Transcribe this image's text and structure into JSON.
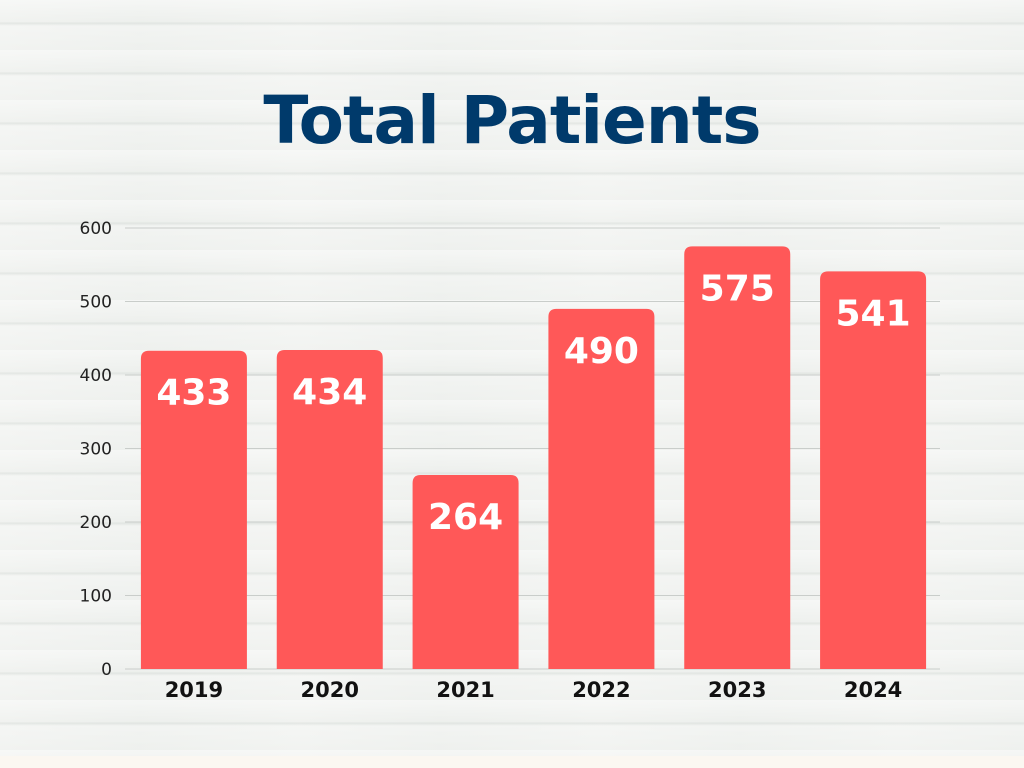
{
  "chart_data": {
    "type": "bar",
    "title": "Total Patients",
    "categories": [
      "2019",
      "2020",
      "2021",
      "2022",
      "2023",
      "2024"
    ],
    "values": [
      433,
      434,
      264,
      490,
      575,
      541
    ],
    "data_labels": [
      "433",
      "434",
      "264",
      "490",
      "575",
      "541"
    ],
    "xlabel": "",
    "ylabel": "",
    "ylim": [
      0,
      600
    ],
    "yticks": [
      "0",
      "100",
      "200",
      "300",
      "400",
      "500",
      "600"
    ],
    "grid": true,
    "legend": "none",
    "colors": {
      "bar": "#ff5858",
      "title": "#003a6b",
      "grid": "#c9cdca"
    }
  }
}
